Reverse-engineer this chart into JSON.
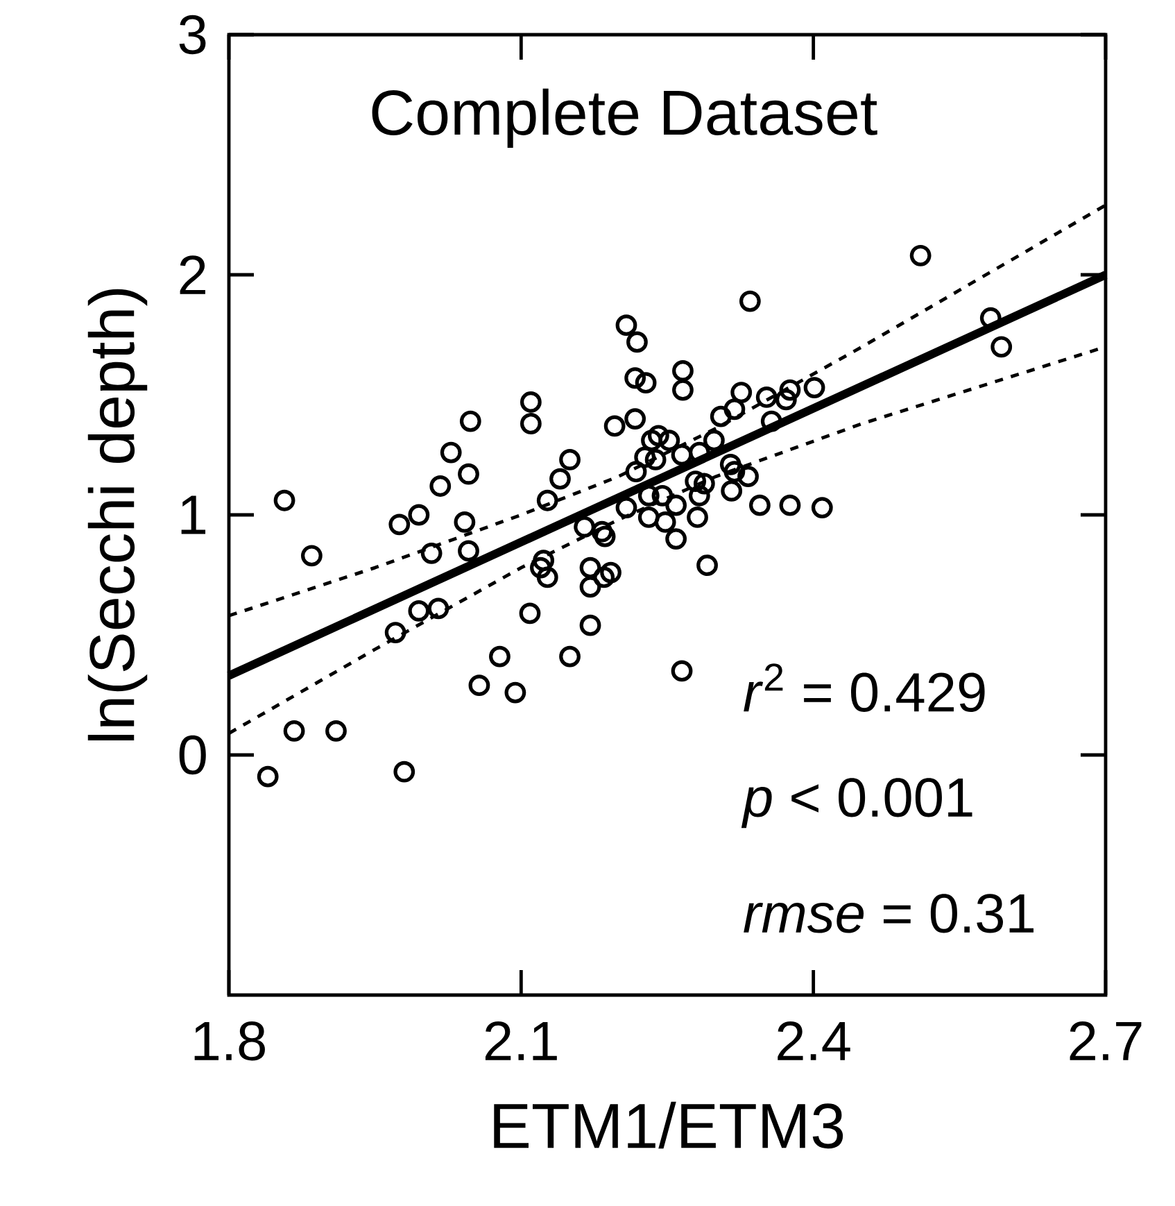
{
  "chart_data": {
    "type": "scatter",
    "title": "Complete Dataset",
    "xlabel": "ETM1/ETM3",
    "ylabel": "ln(Secchi depth)",
    "xlim": [
      1.8,
      2.7
    ],
    "ylim": [
      -1,
      3
    ],
    "xticks": [
      1.8,
      2.1,
      2.4,
      2.7
    ],
    "yticks": [
      0,
      1,
      2,
      3
    ],
    "marker": "circle",
    "annotations": [
      "*r*$^{2}$ = 0.429",
      "*p* < 0.001",
      "*rmse* = 0.31"
    ],
    "series": [
      {
        "color": "#000000",
        "x": [
          1.84,
          1.857,
          1.867,
          1.885,
          1.91,
          1.98,
          1.971,
          1.995,
          2.015,
          1.975,
          1.995,
          2.008,
          2.042,
          2.046,
          2.017,
          2.028,
          2.046,
          2.048,
          2.057,
          2.078,
          2.094,
          2.109,
          2.11,
          2.11,
          2.127,
          2.14,
          2.15,
          2.15,
          2.171,
          2.123,
          2.127,
          2.12,
          2.171,
          2.171,
          2.185,
          2.192,
          2.165,
          2.186,
          2.183,
          2.208,
          2.219,
          2.217,
          2.228,
          2.217,
          2.196,
          2.208,
          2.218,
          2.51,
          2.335,
          2.582,
          2.593,
          2.266,
          2.266,
          2.326,
          2.352,
          2.376,
          2.401,
          2.372,
          2.357,
          2.305,
          2.319,
          2.298,
          2.283,
          2.241,
          2.252,
          2.234,
          2.227,
          2.238,
          2.265,
          2.315,
          2.319,
          2.333,
          2.279,
          2.288,
          2.316,
          2.283,
          2.345,
          2.376,
          2.409,
          2.231,
          2.245,
          2.259,
          2.231,
          2.248,
          2.281,
          2.259,
          2.291,
          2.265
        ],
        "values": [
          -0.09,
          1.06,
          0.1,
          0.83,
          0.1,
          -0.07,
          0.51,
          0.6,
          0.61,
          0.96,
          1.0,
          0.84,
          0.97,
          0.85,
          1.12,
          1.26,
          1.17,
          1.39,
          0.29,
          0.41,
          0.26,
          0.59,
          1.47,
          1.38,
          1.06,
          1.15,
          1.23,
          0.41,
          0.54,
          0.81,
          0.74,
          0.78,
          0.78,
          0.7,
          0.74,
          0.76,
          0.95,
          0.91,
          0.93,
          1.79,
          1.72,
          1.57,
          1.55,
          1.4,
          1.37,
          1.03,
          1.18,
          2.08,
          1.89,
          1.82,
          1.7,
          1.6,
          1.52,
          1.51,
          1.49,
          1.52,
          1.53,
          1.48,
          1.39,
          1.41,
          1.44,
          1.31,
          1.26,
          1.33,
          1.31,
          1.31,
          1.24,
          1.23,
          1.25,
          1.21,
          1.18,
          1.16,
          1.14,
          1.13,
          1.1,
          1.08,
          1.04,
          1.04,
          1.03,
          1.08,
          1.08,
          1.04,
          0.99,
          0.97,
          0.99,
          0.9,
          0.79,
          0.35
        ]
      },
      {
        "type": "line",
        "color": "#000000",
        "line_style": "solid",
        "marker": "none",
        "x": [
          1.8,
          2.7
        ],
        "values": [
          0.33,
          2.0
        ]
      },
      {
        "type": "line",
        "color": "#000000",
        "line_style": "dashed",
        "x": [
          1.8,
          1.95,
          2.1,
          2.2,
          2.3,
          2.45,
          2.7
        ],
        "values": [
          0.58,
          0.78,
          1.0,
          1.16,
          1.36,
          1.7,
          2.29
        ],
        "marker": "none"
      },
      {
        "type": "line",
        "color": "#000000",
        "line_style": "dashed",
        "x": [
          1.8,
          1.95,
          2.1,
          2.2,
          2.3,
          2.45,
          2.7
        ],
        "values": [
          0.09,
          0.44,
          0.78,
          0.98,
          1.16,
          1.38,
          1.7
        ],
        "marker": "none"
      }
    ]
  }
}
